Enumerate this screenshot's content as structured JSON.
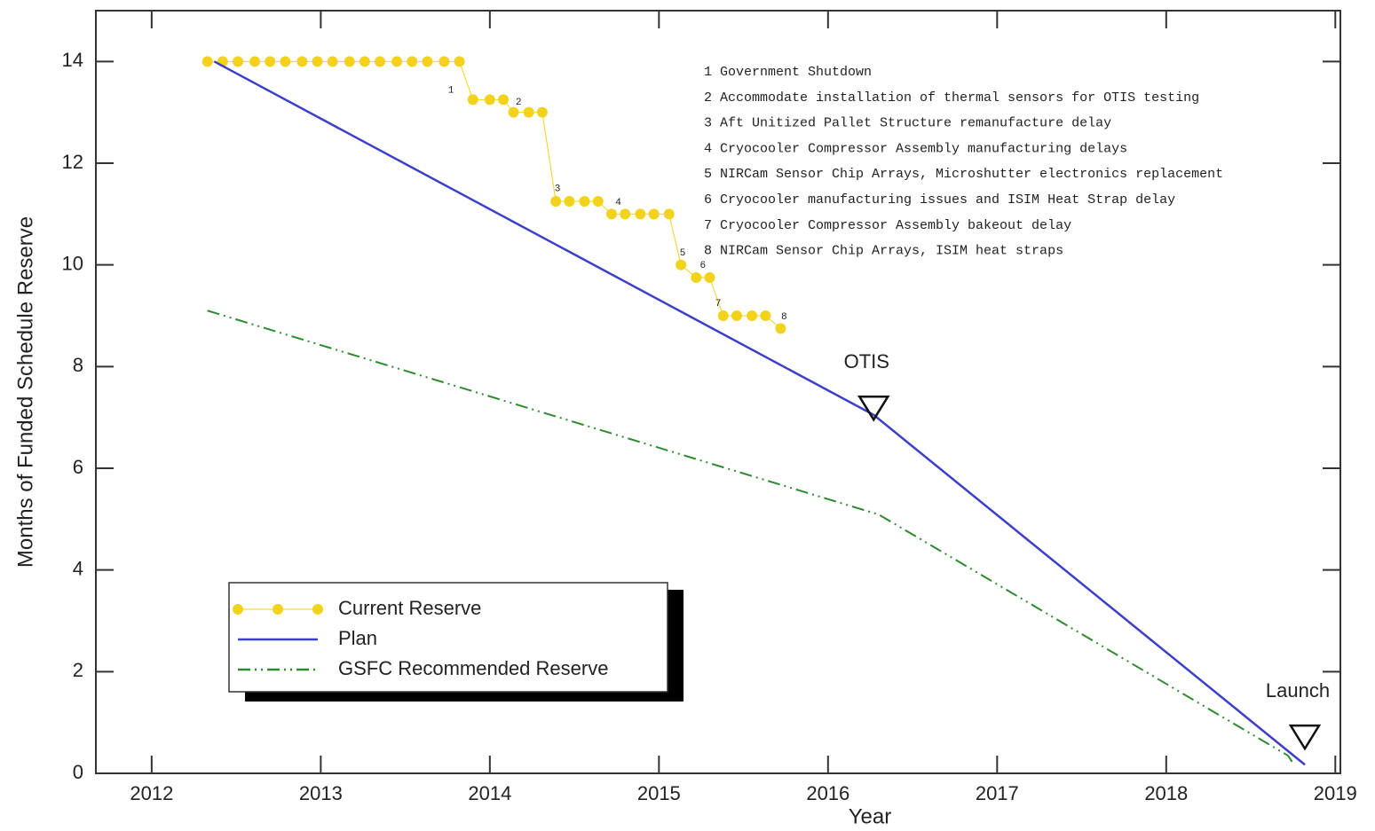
{
  "chart_data": {
    "type": "line",
    "x_label": "Year",
    "y_label": "Months of Funded Schedule Reserve",
    "xlim": [
      2011.67,
      2019.03
    ],
    "ylim": [
      0,
      15
    ],
    "xticks": [
      2012,
      2013,
      2014,
      2015,
      2016,
      2017,
      2018,
      2019
    ],
    "yticks": [
      0,
      2,
      4,
      6,
      8,
      10,
      12,
      14
    ],
    "series": [
      {
        "name": "Current Reserve",
        "color": "#f2d21b",
        "style": "markers",
        "x": [
          2012.33,
          2012.42,
          2012.51,
          2012.61,
          2012.7,
          2012.79,
          2012.89,
          2012.98,
          2013.07,
          2013.17,
          2013.26,
          2013.35,
          2013.45,
          2013.54,
          2013.63,
          2013.73,
          2013.82,
          2013.9,
          2014.0,
          2014.08,
          2014.14,
          2014.23,
          2014.31,
          2014.39,
          2014.47,
          2014.56,
          2014.64,
          2014.72,
          2014.8,
          2014.89,
          2014.97,
          2015.06,
          2015.13,
          2015.22,
          2015.3,
          2015.38,
          2015.46,
          2015.55,
          2015.63,
          2015.72
        ],
        "values": [
          14,
          14,
          14,
          14,
          14,
          14,
          14,
          14,
          14,
          14,
          14,
          14,
          14,
          14,
          14,
          14,
          14,
          13.25,
          13.25,
          13.25,
          13,
          13,
          13,
          11.25,
          11.25,
          11.25,
          11.25,
          11,
          11,
          11,
          11,
          11,
          10,
          9.75,
          9.75,
          9,
          9,
          9,
          9,
          8.75
        ]
      },
      {
        "name": "Plan",
        "color": "#3b3fc9",
        "style": "solid",
        "x": [
          2012.37,
          2016.27,
          2018.82
        ],
        "values": [
          14,
          7.05,
          0.17
        ]
      },
      {
        "name": "GSFC Recommended Reserve",
        "color": "#2e8a2e",
        "style": "dashdotdot",
        "x": [
          2012.33,
          2016.3,
          2018.72,
          2018.75
        ],
        "values": [
          9.1,
          5.09,
          0.35,
          0.2
        ]
      }
    ],
    "step_labels": [
      {
        "text": "1",
        "x": 2013.77,
        "y": 13.44
      },
      {
        "text": "2",
        "x": 2014.17,
        "y": 13.2
      },
      {
        "text": "3",
        "x": 2014.4,
        "y": 11.5
      },
      {
        "text": "4",
        "x": 2014.76,
        "y": 11.23
      },
      {
        "text": "5",
        "x": 2015.14,
        "y": 10.24
      },
      {
        "text": "6",
        "x": 2015.26,
        "y": 9.99
      },
      {
        "text": "7",
        "x": 2015.35,
        "y": 9.24
      },
      {
        "text": "8",
        "x": 2015.74,
        "y": 8.98
      }
    ],
    "milestones": [
      {
        "label": "OTIS",
        "x": 2016.27,
        "y": 7.2
      },
      {
        "label": "Launch",
        "x": 2018.82,
        "y": 0.73
      }
    ],
    "notes": [
      "1 Government Shutdown",
      "2 Accommodate installation of thermal sensors for OTIS testing",
      "3 Aft Unitized Pallet Structure remanufacture delay",
      "4 Cryocooler Compressor Assembly manufacturing delays",
      "5 NIRCam Sensor Chip Arrays, Microshutter electronics replacement",
      "6 Cryocooler manufacturing issues and ISIM Heat Strap delay",
      "7 Cryocooler Compressor Assembly bakeout delay",
      "8 NIRCam Sensor Chip Arrays, ISIM heat straps"
    ],
    "legend": "lower left"
  }
}
